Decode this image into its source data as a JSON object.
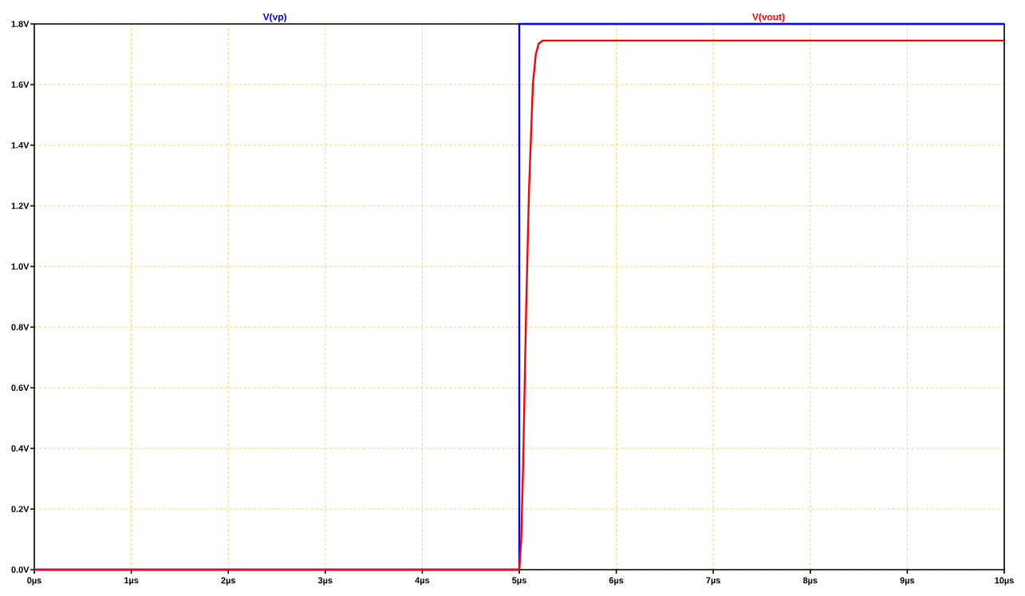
{
  "chart_data": {
    "type": "line",
    "xlim": [
      0,
      10
    ],
    "ylim": [
      0,
      1.8
    ],
    "xticks": [
      {
        "value": 0,
        "label": "0µs"
      },
      {
        "value": 1,
        "label": "1µs"
      },
      {
        "value": 2,
        "label": "2µs"
      },
      {
        "value": 3,
        "label": "3µs"
      },
      {
        "value": 4,
        "label": "4µs"
      },
      {
        "value": 5,
        "label": "5µs"
      },
      {
        "value": 6,
        "label": "6µs"
      },
      {
        "value": 7,
        "label": "7µs"
      },
      {
        "value": 8,
        "label": "8µs"
      },
      {
        "value": 9,
        "label": "9µs"
      },
      {
        "value": 10,
        "label": "10µs"
      }
    ],
    "yticks": [
      {
        "value": 0,
        "label": "0.0V"
      },
      {
        "value": 0.2,
        "label": "0.2V"
      },
      {
        "value": 0.4,
        "label": "0.4V"
      },
      {
        "value": 0.6,
        "label": "0.6V"
      },
      {
        "value": 0.8,
        "label": "0.8V"
      },
      {
        "value": 1.0,
        "label": "1.0V"
      },
      {
        "value": 1.2,
        "label": "1.2V"
      },
      {
        "value": 1.4,
        "label": "1.4V"
      },
      {
        "value": 1.6,
        "label": "1.6V"
      },
      {
        "value": 1.8,
        "label": "1.8V"
      }
    ],
    "grid": true,
    "legend": "top",
    "marker": "none",
    "line_style": "solid",
    "series": [
      {
        "name": "V(vp)",
        "color": "#0000ff",
        "x": [
          0,
          5.0,
          5.0,
          10
        ],
        "values": [
          0,
          0,
          1.8,
          1.8
        ]
      },
      {
        "name": "V(vout)",
        "color": "#ff0000",
        "x": [
          0,
          5.0,
          5.02,
          5.04,
          5.07,
          5.1,
          5.14,
          5.17,
          5.2,
          5.24,
          10
        ],
        "values": [
          0,
          0,
          0.1,
          0.35,
          0.85,
          1.25,
          1.6,
          1.7,
          1.735,
          1.745,
          1.745
        ]
      }
    ]
  }
}
